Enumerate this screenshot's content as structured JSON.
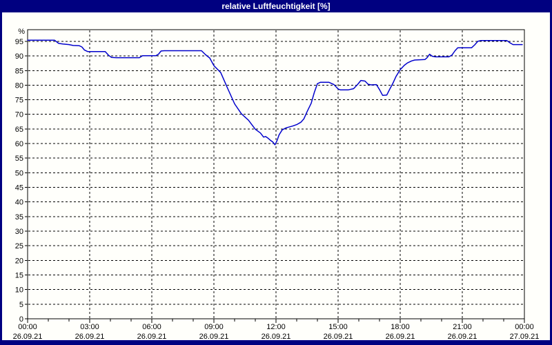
{
  "window": {
    "title": "relative Luftfeuchtigkeit [%]"
  },
  "colors": {
    "frame_navy": "#000080",
    "title_text": "#FFFFFF",
    "plot_background": "#FFFFFB",
    "line_blue": "#0000CC",
    "grid_black": "#000000",
    "tick_label": "#000000"
  },
  "chart_data": {
    "type": "line",
    "title": "relative Luftfeuchtigkeit [%]",
    "ylabel": "%",
    "xlabel": "",
    "ylim": [
      0,
      99
    ],
    "xlim_hours": [
      0,
      24
    ],
    "grid": true,
    "grid_style": "dashed",
    "legend": "none",
    "yticks": [
      0,
      5,
      10,
      15,
      20,
      25,
      30,
      35,
      40,
      45,
      50,
      55,
      60,
      65,
      70,
      75,
      80,
      85,
      90,
      95
    ],
    "xticks": [
      {
        "hour": 0,
        "time": "00:00",
        "date": "26.09.21"
      },
      {
        "hour": 3,
        "time": "03:00",
        "date": "26.09.21"
      },
      {
        "hour": 6,
        "time": "06:00",
        "date": "26.09.21"
      },
      {
        "hour": 9,
        "time": "09:00",
        "date": "26.09.21"
      },
      {
        "hour": 12,
        "time": "12:00",
        "date": "26.09.21"
      },
      {
        "hour": 15,
        "time": "15:00",
        "date": "26.09.21"
      },
      {
        "hour": 18,
        "time": "18:00",
        "date": "26.09.21"
      },
      {
        "hour": 21,
        "time": "21:00",
        "date": "26.09.21"
      },
      {
        "hour": 24,
        "time": "00:00",
        "date": "27.09.21"
      }
    ],
    "minor_xtick_every_hours": 1,
    "series": [
      {
        "name": "relative Luftfeuchtigkeit",
        "unit": "%",
        "points": [
          [
            0,
            95.4
          ],
          [
            1.3,
            95.4
          ],
          [
            1.5,
            94.3
          ],
          [
            1.7,
            94.1
          ],
          [
            2.0,
            93.9
          ],
          [
            2.2,
            93.6
          ],
          [
            2.5,
            93.5
          ],
          [
            2.62,
            93.1
          ],
          [
            2.75,
            92.0
          ],
          [
            2.9,
            91.5
          ],
          [
            3.75,
            91.5
          ],
          [
            3.9,
            90.3
          ],
          [
            4.05,
            89.5
          ],
          [
            4.3,
            89.4
          ],
          [
            5.4,
            89.4
          ],
          [
            5.55,
            90.1
          ],
          [
            6.2,
            90.1
          ],
          [
            6.32,
            90.6
          ],
          [
            6.45,
            91.7
          ],
          [
            6.6,
            91.8
          ],
          [
            8.4,
            91.8
          ],
          [
            8.6,
            90.4
          ],
          [
            8.8,
            89.3
          ],
          [
            9.0,
            86.7
          ],
          [
            9.33,
            84.3
          ],
          [
            9.67,
            78.8
          ],
          [
            10.0,
            73.6
          ],
          [
            10.33,
            70.2
          ],
          [
            10.67,
            68.0
          ],
          [
            11.0,
            64.9
          ],
          [
            11.25,
            63.6
          ],
          [
            11.4,
            62.2
          ],
          [
            11.5,
            62.4
          ],
          [
            11.62,
            61.8
          ],
          [
            11.75,
            61.0
          ],
          [
            11.85,
            60.5
          ],
          [
            11.95,
            59.6
          ],
          [
            12.05,
            61.0
          ],
          [
            12.15,
            63.0
          ],
          [
            12.3,
            64.7
          ],
          [
            12.5,
            65.4
          ],
          [
            12.8,
            66.0
          ],
          [
            13.0,
            66.5
          ],
          [
            13.2,
            67.3
          ],
          [
            13.35,
            68.5
          ],
          [
            13.5,
            70.9
          ],
          [
            13.7,
            73.8
          ],
          [
            13.85,
            77.5
          ],
          [
            14.0,
            80.5
          ],
          [
            14.15,
            81.0
          ],
          [
            14.55,
            81.0
          ],
          [
            14.8,
            80.2
          ],
          [
            15.0,
            78.7
          ],
          [
            15.1,
            78.4
          ],
          [
            15.5,
            78.4
          ],
          [
            15.75,
            78.8
          ],
          [
            15.95,
            80.3
          ],
          [
            16.1,
            81.6
          ],
          [
            16.3,
            81.4
          ],
          [
            16.45,
            80.3
          ],
          [
            16.6,
            80.1
          ],
          [
            16.85,
            80.2
          ],
          [
            17.0,
            78.5
          ],
          [
            17.15,
            76.5
          ],
          [
            17.35,
            76.6
          ],
          [
            17.5,
            78.7
          ],
          [
            17.65,
            80.7
          ],
          [
            17.8,
            83.0
          ],
          [
            18.0,
            85.3
          ],
          [
            18.2,
            86.8
          ],
          [
            18.35,
            87.6
          ],
          [
            18.55,
            88.3
          ],
          [
            18.7,
            88.6
          ],
          [
            19.2,
            88.8
          ],
          [
            19.3,
            89.4
          ],
          [
            19.42,
            90.6
          ],
          [
            19.55,
            89.9
          ],
          [
            19.7,
            89.7
          ],
          [
            20.35,
            89.7
          ],
          [
            20.5,
            90.3
          ],
          [
            20.65,
            91.8
          ],
          [
            20.78,
            92.8
          ],
          [
            21.45,
            92.8
          ],
          [
            21.6,
            93.8
          ],
          [
            21.75,
            95.0
          ],
          [
            21.9,
            95.3
          ],
          [
            23.15,
            95.3
          ],
          [
            23.3,
            94.5
          ],
          [
            23.45,
            93.9
          ],
          [
            23.9,
            93.9
          ]
        ]
      }
    ]
  }
}
